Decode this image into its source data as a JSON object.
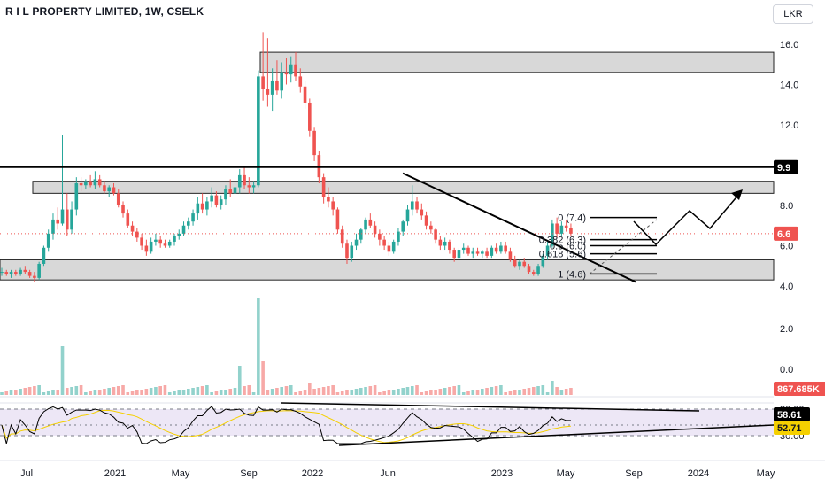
{
  "header": {
    "title": "R I L PROPERTY LIMITED, 1W, CSELK",
    "currency": "LKR"
  },
  "colors": {
    "up": "#26a69a",
    "down": "#ef5350",
    "zone_fill": "#d1d1d1",
    "rsi": "#000000",
    "rsi_ma": "#f5d000",
    "rsi_band": "#ede7f6"
  },
  "chart_data": [
    {
      "type": "candlestick",
      "title": "R I L PROPERTY LIMITED, 1W, CSELK",
      "x_ticks": [
        "Jul",
        "2021",
        "May",
        "Sep",
        "2022",
        "Jun",
        "2023",
        "May",
        "Sep",
        "2024",
        "May"
      ],
      "y_ticks": [
        4.0,
        6.0,
        8.0,
        10.0,
        12.0,
        14.0,
        16.0
      ],
      "ylim": [
        4.0,
        16.5
      ],
      "price_labels": {
        "resistance_line": "9.9",
        "last_price": "6.6"
      },
      "zones": [
        {
          "name": "upper supply zone",
          "from": 14.6,
          "to": 15.6
        },
        {
          "name": "resistance zone",
          "from": 8.6,
          "to": 9.2
        },
        {
          "name": "support zone",
          "from": 4.3,
          "to": 5.3
        }
      ],
      "horizontal_line": 9.9,
      "fibonacci_labels": [
        "0 (7.4)",
        "0.382 (6.3)",
        "0.5 (6.0)",
        "0.618 (5.6)",
        "1 (4.6)"
      ],
      "fibonacci_levels": [
        7.4,
        6.3,
        6.0,
        5.6,
        4.6
      ],
      "weekly_ohlc_approx": [
        [
          4.7,
          4.9,
          4.5,
          4.7
        ],
        [
          4.7,
          4.8,
          4.5,
          4.6
        ],
        [
          4.6,
          4.8,
          4.4,
          4.7
        ],
        [
          4.7,
          4.8,
          4.5,
          4.6
        ],
        [
          4.6,
          4.9,
          4.5,
          4.8
        ],
        [
          4.8,
          5.0,
          4.6,
          4.7
        ],
        [
          4.7,
          4.8,
          4.4,
          4.5
        ],
        [
          4.5,
          4.7,
          4.2,
          4.4
        ],
        [
          4.4,
          5.2,
          4.3,
          5.1
        ],
        [
          5.1,
          6.0,
          5.0,
          5.9
        ],
        [
          5.9,
          6.8,
          5.7,
          6.6
        ],
        [
          6.6,
          7.6,
          6.3,
          7.3
        ],
        [
          7.3,
          7.9,
          6.8,
          7.1
        ],
        [
          7.1,
          11.5,
          7.0,
          7.8
        ],
        [
          7.8,
          8.6,
          6.5,
          6.8
        ],
        [
          6.8,
          8.2,
          6.6,
          7.8
        ],
        [
          7.8,
          9.4,
          7.5,
          9.1
        ],
        [
          9.1,
          9.4,
          8.7,
          9.0
        ],
        [
          9.0,
          9.3,
          8.8,
          9.2
        ],
        [
          9.2,
          9.5,
          8.9,
          9.0
        ],
        [
          9.0,
          9.7,
          8.8,
          9.3
        ],
        [
          9.3,
          9.5,
          8.9,
          9.0
        ],
        [
          9.0,
          9.2,
          8.6,
          8.7
        ],
        [
          8.7,
          9.0,
          8.4,
          8.9
        ],
        [
          8.9,
          9.1,
          8.5,
          8.6
        ],
        [
          8.6,
          8.8,
          7.9,
          8.0
        ],
        [
          8.0,
          8.2,
          7.4,
          7.6
        ],
        [
          7.6,
          7.8,
          6.9,
          7.0
        ],
        [
          7.0,
          7.2,
          6.5,
          6.7
        ],
        [
          6.7,
          6.9,
          6.2,
          6.4
        ],
        [
          6.4,
          6.6,
          5.8,
          6.0
        ],
        [
          6.0,
          6.3,
          5.5,
          5.7
        ],
        [
          5.7,
          6.4,
          5.6,
          6.2
        ],
        [
          6.2,
          6.6,
          6.0,
          6.3
        ],
        [
          6.3,
          6.5,
          5.9,
          6.1
        ],
        [
          6.1,
          6.3,
          5.9,
          6.0
        ],
        [
          6.0,
          6.3,
          5.9,
          6.2
        ],
        [
          6.2,
          6.6,
          6.0,
          6.5
        ],
        [
          6.5,
          6.8,
          6.3,
          6.6
        ],
        [
          6.6,
          7.2,
          6.5,
          7.0
        ],
        [
          7.0,
          7.4,
          6.8,
          7.2
        ],
        [
          7.2,
          7.8,
          7.0,
          7.6
        ],
        [
          7.6,
          8.4,
          7.3,
          8.1
        ],
        [
          8.1,
          8.6,
          7.6,
          7.8
        ],
        [
          7.8,
          8.4,
          7.5,
          8.2
        ],
        [
          8.2,
          8.9,
          7.9,
          8.5
        ],
        [
          8.5,
          8.7,
          7.9,
          8.0
        ],
        [
          8.0,
          8.5,
          7.8,
          8.3
        ],
        [
          8.3,
          9.0,
          8.0,
          8.8
        ],
        [
          8.8,
          9.3,
          8.4,
          8.6
        ],
        [
          8.6,
          9.0,
          8.3,
          8.9
        ],
        [
          8.9,
          9.8,
          8.6,
          9.5
        ],
        [
          9.5,
          9.9,
          8.8,
          9.0
        ],
        [
          9.0,
          9.4,
          8.6,
          8.9
        ],
        [
          8.9,
          9.2,
          8.6,
          9.0
        ],
        [
          9.0,
          14.7,
          8.9,
          14.4
        ],
        [
          14.4,
          16.6,
          13.2,
          13.8
        ],
        [
          13.8,
          16.3,
          12.9,
          13.5
        ],
        [
          13.5,
          14.8,
          12.7,
          14.2
        ],
        [
          14.2,
          15.2,
          13.5,
          13.7
        ],
        [
          13.7,
          15.1,
          13.3,
          14.6
        ],
        [
          14.6,
          15.3,
          14.0,
          14.5
        ],
        [
          14.5,
          15.4,
          14.1,
          15.0
        ],
        [
          15.0,
          15.6,
          14.2,
          14.4
        ],
        [
          14.4,
          14.8,
          13.6,
          13.9
        ],
        [
          13.9,
          14.2,
          12.8,
          13.1
        ],
        [
          13.1,
          13.3,
          11.4,
          11.7
        ],
        [
          11.7,
          11.9,
          10.2,
          10.5
        ],
        [
          10.5,
          10.7,
          9.1,
          9.4
        ],
        [
          9.4,
          9.6,
          8.1,
          8.4
        ],
        [
          8.4,
          8.9,
          7.9,
          8.2
        ],
        [
          8.2,
          8.4,
          7.5,
          7.8
        ],
        [
          7.8,
          7.9,
          6.6,
          6.8
        ],
        [
          6.8,
          7.0,
          5.9,
          6.1
        ],
        [
          6.1,
          6.3,
          5.1,
          5.4
        ],
        [
          5.4,
          6.2,
          5.2,
          6.0
        ],
        [
          6.0,
          6.6,
          5.8,
          6.3
        ],
        [
          6.3,
          6.9,
          6.1,
          6.8
        ],
        [
          6.8,
          7.4,
          6.6,
          7.3
        ],
        [
          7.3,
          7.6,
          6.9,
          7.0
        ],
        [
          7.0,
          7.2,
          6.4,
          6.6
        ],
        [
          6.6,
          6.8,
          6.0,
          6.3
        ],
        [
          6.3,
          6.5,
          5.8,
          6.0
        ],
        [
          6.0,
          6.2,
          5.5,
          5.7
        ],
        [
          5.7,
          6.3,
          5.6,
          6.2
        ],
        [
          6.2,
          6.9,
          6.0,
          6.7
        ],
        [
          6.7,
          7.3,
          6.5,
          7.2
        ],
        [
          7.2,
          8.0,
          7.0,
          7.8
        ],
        [
          7.8,
          9.0,
          7.5,
          8.2
        ],
        [
          8.2,
          8.4,
          7.6,
          7.8
        ],
        [
          7.8,
          8.1,
          7.3,
          7.5
        ],
        [
          7.5,
          7.7,
          6.8,
          7.0
        ],
        [
          7.0,
          7.2,
          6.6,
          6.8
        ],
        [
          6.8,
          6.9,
          6.1,
          6.3
        ],
        [
          6.3,
          6.5,
          5.8,
          6.0
        ],
        [
          6.0,
          6.4,
          5.8,
          6.2
        ],
        [
          6.2,
          6.3,
          5.6,
          5.8
        ],
        [
          5.8,
          5.9,
          5.2,
          5.4
        ],
        [
          5.4,
          5.9,
          5.3,
          5.8
        ],
        [
          5.8,
          6.1,
          5.6,
          5.9
        ],
        [
          5.9,
          6.0,
          5.5,
          5.6
        ],
        [
          5.6,
          5.9,
          5.4,
          5.7
        ],
        [
          5.7,
          5.9,
          5.5,
          5.6
        ],
        [
          5.6,
          5.8,
          5.4,
          5.7
        ],
        [
          5.7,
          5.9,
          5.4,
          5.5
        ],
        [
          5.5,
          6.0,
          5.4,
          5.9
        ],
        [
          5.9,
          6.1,
          5.6,
          5.7
        ],
        [
          5.7,
          6.2,
          5.6,
          6.0
        ],
        [
          6.0,
          6.2,
          5.6,
          5.7
        ],
        [
          5.7,
          5.9,
          5.2,
          5.3
        ],
        [
          5.3,
          5.5,
          4.9,
          5.0
        ],
        [
          5.0,
          5.3,
          4.8,
          5.2
        ],
        [
          5.2,
          5.4,
          4.9,
          5.0
        ],
        [
          5.0,
          5.1,
          4.6,
          4.7
        ],
        [
          4.7,
          4.8,
          4.5,
          4.6
        ],
        [
          4.6,
          5.1,
          4.5,
          5.0
        ],
        [
          5.0,
          5.6,
          4.9,
          5.5
        ],
        [
          5.5,
          6.2,
          5.3,
          6.0
        ],
        [
          6.0,
          7.3,
          5.9,
          7.1
        ],
        [
          7.1,
          7.4,
          6.4,
          6.6
        ],
        [
          6.6,
          7.2,
          6.5,
          7.0
        ],
        [
          7.0,
          7.3,
          6.7,
          6.9
        ],
        [
          6.9,
          7.1,
          6.5,
          6.6
        ]
      ]
    },
    {
      "type": "bar",
      "name": "volume",
      "last_value_label": "867.685K"
    },
    {
      "type": "line",
      "name": "RSI",
      "y_ticks": [
        80.0,
        30.0
      ],
      "last_value_labels": {
        "rsi": "58.61",
        "rsi_ma": "52.71"
      }
    }
  ]
}
